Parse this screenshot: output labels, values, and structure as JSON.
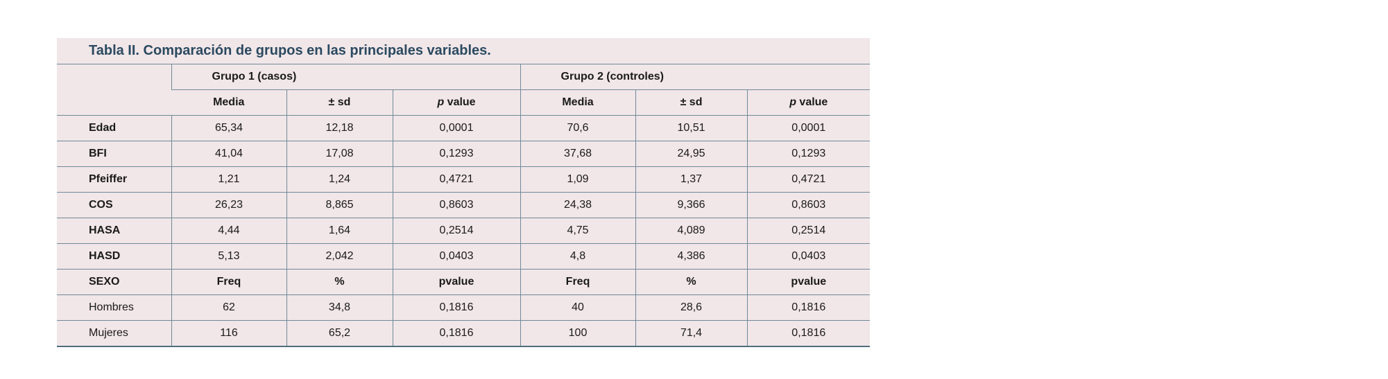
{
  "caption": "Tabla II. Comparación de grupos en las principales variables.",
  "groups": [
    "Grupo 1 (casos)",
    "Grupo 2 (controles)"
  ],
  "columns": {
    "media": "Media",
    "sd": "± sd",
    "p_italic": "p",
    "p_rest": " value"
  },
  "rows": [
    {
      "label": "Edad",
      "g1": [
        "65,34",
        "12,18",
        "0,0001"
      ],
      "g2": [
        "70,6",
        "10,51",
        "0,0001"
      ]
    },
    {
      "label": "BFI",
      "g1": [
        "41,04",
        "17,08",
        "0,1293"
      ],
      "g2": [
        "37,68",
        "24,95",
        "0,1293"
      ]
    },
    {
      "label": "Pfeiffer",
      "g1": [
        "1,21",
        "1,24",
        "0,4721"
      ],
      "g2": [
        "1,09",
        "1,37",
        "0,4721"
      ]
    },
    {
      "label": "COS",
      "g1": [
        "26,23",
        "8,865",
        "0,8603"
      ],
      "g2": [
        "24,38",
        "9,366",
        "0,8603"
      ]
    },
    {
      "label": "HASA",
      "g1": [
        "4,44",
        "1,64",
        "0,2514"
      ],
      "g2": [
        "4,75",
        "4,089",
        "0,2514"
      ]
    },
    {
      "label": "HASD",
      "g1": [
        "5,13",
        "2,042",
        "0,0403"
      ],
      "g2": [
        "4,8",
        "4,386",
        "0,0403"
      ]
    }
  ],
  "sexo_header": {
    "label": "SEXO",
    "cols": [
      "Freq",
      "%",
      "pvalue",
      "Freq",
      "%",
      "pvalue"
    ]
  },
  "sexo_rows": [
    {
      "label": "Hombres",
      "g1": [
        "62",
        "34,8",
        "0,1816"
      ],
      "g2": [
        "40",
        "28,6",
        "0,1816"
      ]
    },
    {
      "label": "Mujeres",
      "g1": [
        "116",
        "65,2",
        "0,1816"
      ],
      "g2": [
        "100",
        "71,4",
        "0,1816"
      ]
    }
  ]
}
